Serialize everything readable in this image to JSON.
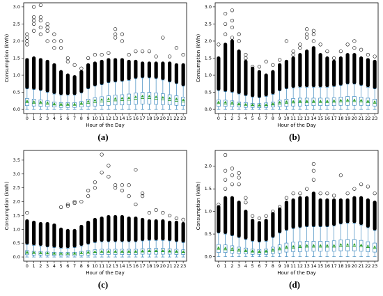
{
  "chart_data": [
    {
      "type": "box",
      "panel_label": "(a)",
      "xlabel": "Hour of the Day",
      "ylabel": "Consumption (kWh)",
      "categories": [
        "0",
        "1",
        "2",
        "3",
        "4",
        "5",
        "6",
        "7",
        "8",
        "9",
        "10",
        "11",
        "12",
        "13",
        "14",
        "15",
        "16",
        "17",
        "18",
        "19",
        "20",
        "21",
        "22",
        "23"
      ],
      "ylim": [
        -0.12,
        3.12
      ],
      "yticks": [
        {
          "value": 0,
          "label": "0.0"
        },
        {
          "value": 0.5,
          "label": "0.5"
        },
        {
          "value": 1,
          "label": "1.0"
        },
        {
          "value": 1.5,
          "label": "1.5"
        },
        {
          "value": 2,
          "label": "2.0"
        },
        {
          "value": 2.5,
          "label": "2.5"
        },
        {
          "value": 3,
          "label": "3.0"
        }
      ],
      "box_color": "#1f77b4",
      "median_color": "#2ca02c",
      "mean_color": "#2ca02c",
      "whislo": [
        0,
        0,
        0,
        0,
        0,
        0,
        0,
        0,
        0,
        0,
        0,
        0,
        0,
        0,
        0,
        0,
        0,
        0,
        0,
        0,
        0,
        0,
        0,
        0
      ],
      "q1": [
        0.11,
        0.1,
        0.09,
        0.08,
        0.07,
        0.06,
        0.06,
        0.06,
        0.07,
        0.09,
        0.1,
        0.11,
        0.12,
        0.13,
        0.13,
        0.14,
        0.15,
        0.16,
        0.16,
        0.15,
        0.14,
        0.13,
        0.12,
        0.11
      ],
      "medians": [
        0.2,
        0.18,
        0.17,
        0.15,
        0.13,
        0.12,
        0.12,
        0.12,
        0.14,
        0.18,
        0.2,
        0.22,
        0.24,
        0.25,
        0.26,
        0.27,
        0.3,
        0.32,
        0.32,
        0.3,
        0.28,
        0.26,
        0.24,
        0.22
      ],
      "q3": [
        0.32,
        0.3,
        0.28,
        0.25,
        0.22,
        0.2,
        0.2,
        0.2,
        0.23,
        0.3,
        0.34,
        0.37,
        0.4,
        0.42,
        0.43,
        0.45,
        0.48,
        0.5,
        0.5,
        0.48,
        0.46,
        0.43,
        0.4,
        0.36
      ],
      "whishi": [
        0.6,
        0.58,
        0.55,
        0.5,
        0.45,
        0.42,
        0.42,
        0.42,
        0.48,
        0.6,
        0.68,
        0.72,
        0.78,
        0.8,
        0.82,
        0.85,
        0.9,
        0.92,
        0.92,
        0.9,
        0.86,
        0.8,
        0.75,
        0.68
      ],
      "means": [
        0.25,
        0.23,
        0.22,
        0.2,
        0.17,
        0.16,
        0.16,
        0.16,
        0.19,
        0.24,
        0.27,
        0.29,
        0.31,
        0.32,
        0.33,
        0.34,
        0.37,
        0.39,
        0.39,
        0.37,
        0.35,
        0.33,
        0.31,
        0.28
      ],
      "flier_top": [
        1.45,
        1.5,
        1.45,
        1.4,
        1.3,
        1.1,
        1.0,
        0.95,
        1.1,
        1.3,
        1.35,
        1.4,
        1.45,
        1.45,
        1.45,
        1.4,
        1.4,
        1.35,
        1.35,
        1.35,
        1.35,
        1.35,
        1.3,
        1.3
      ],
      "fliers": [
        [
          1.9,
          2.0,
          2.1,
          2.2
        ],
        [
          2.3,
          2.5,
          2.6,
          2.7,
          3.0
        ],
        [
          2.2,
          2.4,
          2.6,
          2.7,
          3.05
        ],
        [
          2.0,
          2.3,
          2.4,
          2.5
        ],
        [
          1.8,
          2.0,
          2.2
        ],
        [
          1.8,
          2.0
        ],
        [
          1.4,
          1.5
        ],
        [
          1.3
        ],
        [
          1.2
        ],
        [
          1.5
        ],
        [
          1.6
        ],
        [
          1.6
        ],
        [
          1.65
        ],
        [
          2.1,
          2.2,
          2.35
        ],
        [
          2.0,
          2.2
        ],
        [
          1.6
        ],
        [
          1.7
        ],
        [
          1.7
        ],
        [
          1.7
        ],
        [
          1.55
        ],
        [
          2.1
        ],
        [
          1.55
        ],
        [
          1.8
        ],
        [
          1.6
        ]
      ]
    },
    {
      "type": "box",
      "panel_label": "(b)",
      "xlabel": "Hour of the Day",
      "ylabel": "Consumption (kWh)",
      "categories": [
        "0",
        "1",
        "2",
        "3",
        "4",
        "5",
        "6",
        "7",
        "8",
        "9",
        "10",
        "11",
        "12",
        "13",
        "14",
        "15",
        "16",
        "17",
        "18",
        "19",
        "20",
        "21",
        "22",
        "23"
      ],
      "ylim": [
        -0.12,
        3.12
      ],
      "yticks": [
        {
          "value": 0,
          "label": "0.0"
        },
        {
          "value": 0.5,
          "label": "0.5"
        },
        {
          "value": 1,
          "label": "1.0"
        },
        {
          "value": 1.5,
          "label": "1.5"
        },
        {
          "value": 2,
          "label": "2.0"
        },
        {
          "value": 2.5,
          "label": "2.5"
        },
        {
          "value": 3,
          "label": "3.0"
        }
      ],
      "box_color": "#1f77b4",
      "median_color": "#2ca02c",
      "mean_color": "#2ca02c",
      "whislo": [
        0,
        0,
        0,
        0,
        0,
        0,
        0,
        0,
        0,
        0,
        0,
        0,
        0,
        0,
        0,
        0,
        0,
        0,
        0,
        0,
        0,
        0,
        0,
        0
      ],
      "q1": [
        0.09,
        0.09,
        0.08,
        0.07,
        0.06,
        0.06,
        0.05,
        0.06,
        0.07,
        0.08,
        0.09,
        0.1,
        0.1,
        0.11,
        0.11,
        0.11,
        0.11,
        0.11,
        0.12,
        0.12,
        0.12,
        0.12,
        0.11,
        0.1
      ],
      "medians": [
        0.17,
        0.16,
        0.15,
        0.13,
        0.12,
        0.11,
        0.1,
        0.11,
        0.13,
        0.16,
        0.18,
        0.19,
        0.2,
        0.2,
        0.2,
        0.2,
        0.2,
        0.21,
        0.22,
        0.23,
        0.23,
        0.22,
        0.2,
        0.18
      ],
      "q3": [
        0.28,
        0.27,
        0.25,
        0.22,
        0.2,
        0.18,
        0.17,
        0.19,
        0.22,
        0.27,
        0.3,
        0.32,
        0.33,
        0.33,
        0.33,
        0.33,
        0.33,
        0.34,
        0.36,
        0.38,
        0.38,
        0.36,
        0.33,
        0.3
      ],
      "whishi": [
        0.55,
        0.52,
        0.5,
        0.45,
        0.4,
        0.36,
        0.34,
        0.38,
        0.44,
        0.54,
        0.6,
        0.63,
        0.65,
        0.65,
        0.65,
        0.65,
        0.65,
        0.67,
        0.7,
        0.74,
        0.74,
        0.7,
        0.65,
        0.6
      ],
      "means": [
        0.22,
        0.21,
        0.2,
        0.17,
        0.15,
        0.14,
        0.13,
        0.14,
        0.17,
        0.21,
        0.23,
        0.24,
        0.25,
        0.25,
        0.25,
        0.25,
        0.25,
        0.26,
        0.27,
        0.28,
        0.28,
        0.27,
        0.25,
        0.23
      ],
      "flier_top": [
        1.5,
        1.9,
        2.0,
        1.7,
        1.4,
        1.2,
        1.1,
        1.0,
        1.1,
        1.3,
        1.4,
        1.5,
        1.6,
        1.7,
        1.8,
        1.6,
        1.5,
        1.4,
        1.5,
        1.6,
        1.6,
        1.5,
        1.45,
        1.4
      ],
      "fliers": [
        [
          1.9
        ],
        [
          2.2,
          2.5,
          2.8
        ],
        [
          2.1,
          2.4,
          2.6,
          2.9
        ],
        [
          2.0,
          2.2
        ],
        [
          1.5,
          1.6
        ],
        [
          1.25
        ],
        [
          1.25
        ],
        [
          1.4
        ],
        [
          1.3
        ],
        [
          1.45
        ],
        [
          2.0
        ],
        [
          1.6,
          1.7
        ],
        [
          1.8,
          1.9
        ],
        [
          2.1,
          2.2,
          2.35
        ],
        [
          2.0,
          2.2,
          2.3
        ],
        [
          1.9
        ],
        [
          1.7
        ],
        [
          1.5
        ],
        [
          1.7
        ],
        [
          1.9
        ],
        [
          1.8,
          2.0
        ],
        [
          1.75
        ],
        [
          1.6
        ],
        [
          1.55
        ]
      ]
    },
    {
      "type": "box",
      "panel_label": "(c)",
      "xlabel": "Hour of the Day",
      "ylabel": "Consumption (kWh)",
      "categories": [
        "0",
        "1",
        "2",
        "3",
        "4",
        "5",
        "6",
        "7",
        "8",
        "9",
        "10",
        "11",
        "12",
        "13",
        "14",
        "15",
        "16",
        "17",
        "18",
        "19",
        "20",
        "21",
        "22",
        "23"
      ],
      "ylim": [
        -0.15,
        3.85
      ],
      "yticks": [
        {
          "value": 0,
          "label": "0.0"
        },
        {
          "value": 0.5,
          "label": "0.5"
        },
        {
          "value": 1,
          "label": "1.0"
        },
        {
          "value": 1.5,
          "label": "1.5"
        },
        {
          "value": 2,
          "label": "2.0"
        },
        {
          "value": 2.5,
          "label": "2.5"
        },
        {
          "value": 3,
          "label": "3.0"
        },
        {
          "value": 3.5,
          "label": "3.5"
        }
      ],
      "box_color": "#1f77b4",
      "median_color": "#2ca02c",
      "mean_color": "#2ca02c",
      "whislo": [
        0,
        0,
        0,
        0,
        0,
        0,
        0,
        0,
        0,
        0,
        0,
        0,
        0,
        0,
        0,
        0,
        0,
        0,
        0,
        0,
        0,
        0,
        0,
        0
      ],
      "q1": [
        0.08,
        0.07,
        0.07,
        0.06,
        0.06,
        0.05,
        0.05,
        0.05,
        0.06,
        0.07,
        0.08,
        0.09,
        0.09,
        0.09,
        0.09,
        0.09,
        0.09,
        0.1,
        0.1,
        0.1,
        0.1,
        0.1,
        0.09,
        0.09
      ],
      "medians": [
        0.14,
        0.13,
        0.12,
        0.11,
        0.1,
        0.1,
        0.1,
        0.1,
        0.12,
        0.14,
        0.16,
        0.17,
        0.17,
        0.17,
        0.17,
        0.17,
        0.17,
        0.18,
        0.19,
        0.19,
        0.19,
        0.18,
        0.17,
        0.16
      ],
      "q3": [
        0.23,
        0.21,
        0.2,
        0.18,
        0.17,
        0.16,
        0.16,
        0.17,
        0.2,
        0.23,
        0.26,
        0.28,
        0.28,
        0.28,
        0.28,
        0.28,
        0.28,
        0.3,
        0.31,
        0.31,
        0.31,
        0.3,
        0.28,
        0.26
      ],
      "whishi": [
        0.45,
        0.42,
        0.4,
        0.36,
        0.34,
        0.32,
        0.32,
        0.34,
        0.4,
        0.46,
        0.52,
        0.55,
        0.55,
        0.55,
        0.55,
        0.55,
        0.55,
        0.58,
        0.6,
        0.6,
        0.6,
        0.58,
        0.55,
        0.52
      ],
      "means": [
        0.18,
        0.17,
        0.16,
        0.15,
        0.14,
        0.13,
        0.13,
        0.14,
        0.16,
        0.18,
        0.2,
        0.21,
        0.21,
        0.21,
        0.21,
        0.21,
        0.21,
        0.22,
        0.23,
        0.23,
        0.23,
        0.22,
        0.21,
        0.2
      ],
      "flier_top": [
        1.3,
        1.25,
        1.2,
        1.2,
        1.15,
        1.0,
        0.95,
        0.95,
        1.1,
        1.25,
        1.35,
        1.4,
        1.45,
        1.45,
        1.45,
        1.4,
        1.4,
        1.35,
        1.3,
        1.3,
        1.3,
        1.25,
        1.25,
        1.2
      ],
      "fliers": [
        [
          1.6
        ],
        [],
        [],
        [],
        [],
        [
          1.8
        ],
        [
          1.85,
          1.9
        ],
        [
          1.95,
          2.0
        ],
        [
          2.0
        ],
        [
          2.2,
          2.4
        ],
        [
          2.5,
          2.7
        ],
        [
          3.05,
          3.7
        ],
        [
          2.9,
          3.3
        ],
        [
          2.5,
          2.6
        ],
        [
          2.4,
          2.6
        ],
        [
          2.2,
          2.6
        ],
        [
          1.9,
          3.15
        ],
        [
          2.2,
          2.3
        ],
        [
          1.6
        ],
        [
          1.7
        ],
        [
          1.6
        ],
        [
          1.5
        ],
        [
          1.4
        ],
        [
          1.35
        ]
      ]
    },
    {
      "type": "box",
      "panel_label": "(d)",
      "xlabel": "Hour of the Day",
      "ylabel": "Consumption (kWh)",
      "categories": [
        "0",
        "1",
        "2",
        "3",
        "4",
        "5",
        "6",
        "7",
        "8",
        "9",
        "10",
        "11",
        "12",
        "13",
        "14",
        "15",
        "16",
        "17",
        "18",
        "19",
        "20",
        "21",
        "22",
        "23"
      ],
      "ylim": [
        -0.1,
        2.35
      ],
      "yticks": [
        {
          "value": 0,
          "label": "0.0"
        },
        {
          "value": 0.5,
          "label": "0.5"
        },
        {
          "value": 1,
          "label": "1.0"
        },
        {
          "value": 1.5,
          "label": "1.5"
        },
        {
          "value": 2,
          "label": "2.0"
        }
      ],
      "box_color": "#1f77b4",
      "median_color": "#2ca02c",
      "mean_color": "#2ca02c",
      "whislo": [
        0,
        0,
        0,
        0,
        0,
        0,
        0,
        0,
        0,
        0,
        0,
        0,
        0,
        0,
        0,
        0,
        0,
        0,
        0,
        0,
        0,
        0,
        0,
        0
      ],
      "q1": [
        0.09,
        0.09,
        0.08,
        0.07,
        0.06,
        0.05,
        0.05,
        0.05,
        0.07,
        0.08,
        0.1,
        0.11,
        0.11,
        0.12,
        0.12,
        0.12,
        0.12,
        0.12,
        0.13,
        0.13,
        0.13,
        0.12,
        0.11,
        0.1
      ],
      "medians": [
        0.16,
        0.15,
        0.14,
        0.12,
        0.11,
        0.1,
        0.09,
        0.1,
        0.12,
        0.15,
        0.18,
        0.19,
        0.2,
        0.21,
        0.21,
        0.21,
        0.21,
        0.21,
        0.23,
        0.23,
        0.23,
        0.22,
        0.2,
        0.18
      ],
      "q3": [
        0.27,
        0.26,
        0.24,
        0.21,
        0.19,
        0.17,
        0.16,
        0.17,
        0.21,
        0.26,
        0.3,
        0.32,
        0.33,
        0.34,
        0.34,
        0.34,
        0.34,
        0.35,
        0.37,
        0.38,
        0.38,
        0.36,
        0.33,
        0.3
      ],
      "whishi": [
        0.52,
        0.5,
        0.46,
        0.42,
        0.38,
        0.34,
        0.32,
        0.34,
        0.42,
        0.52,
        0.58,
        0.62,
        0.64,
        0.66,
        0.66,
        0.66,
        0.66,
        0.68,
        0.72,
        0.74,
        0.74,
        0.7,
        0.64,
        0.58
      ],
      "means": [
        0.2,
        0.19,
        0.18,
        0.16,
        0.14,
        0.13,
        0.12,
        0.13,
        0.16,
        0.19,
        0.22,
        0.23,
        0.24,
        0.25,
        0.25,
        0.25,
        0.25,
        0.25,
        0.27,
        0.27,
        0.27,
        0.26,
        0.24,
        0.22
      ],
      "flier_top": [
        1.1,
        1.3,
        1.3,
        1.2,
        1.0,
        0.8,
        0.75,
        0.8,
        0.95,
        1.05,
        1.2,
        1.25,
        1.3,
        1.3,
        1.4,
        1.25,
        1.25,
        1.25,
        1.25,
        1.25,
        1.3,
        1.3,
        1.25,
        1.2
      ],
      "fliers": [
        [
          1.15
        ],
        [
          1.5,
          1.7,
          1.9,
          2.25
        ],
        [
          1.6,
          1.8,
          1.95
        ],
        [
          1.6,
          1.75,
          1.85
        ],
        [
          1.2,
          1.3
        ],
        [
          0.9
        ],
        [
          0.85
        ],
        [
          0.9
        ],
        [
          1.0
        ],
        [
          1.1
        ],
        [
          1.3
        ],
        [
          1.4
        ],
        [
          1.4
        ],
        [
          1.5
        ],
        [
          1.7,
          1.9,
          2.05
        ],
        [
          1.4
        ],
        [
          1.4
        ],
        [
          1.35
        ],
        [
          1.8
        ],
        [
          1.4
        ],
        [
          1.5
        ],
        [
          1.6
        ],
        [
          1.55
        ],
        [
          1.4
        ]
      ]
    }
  ]
}
